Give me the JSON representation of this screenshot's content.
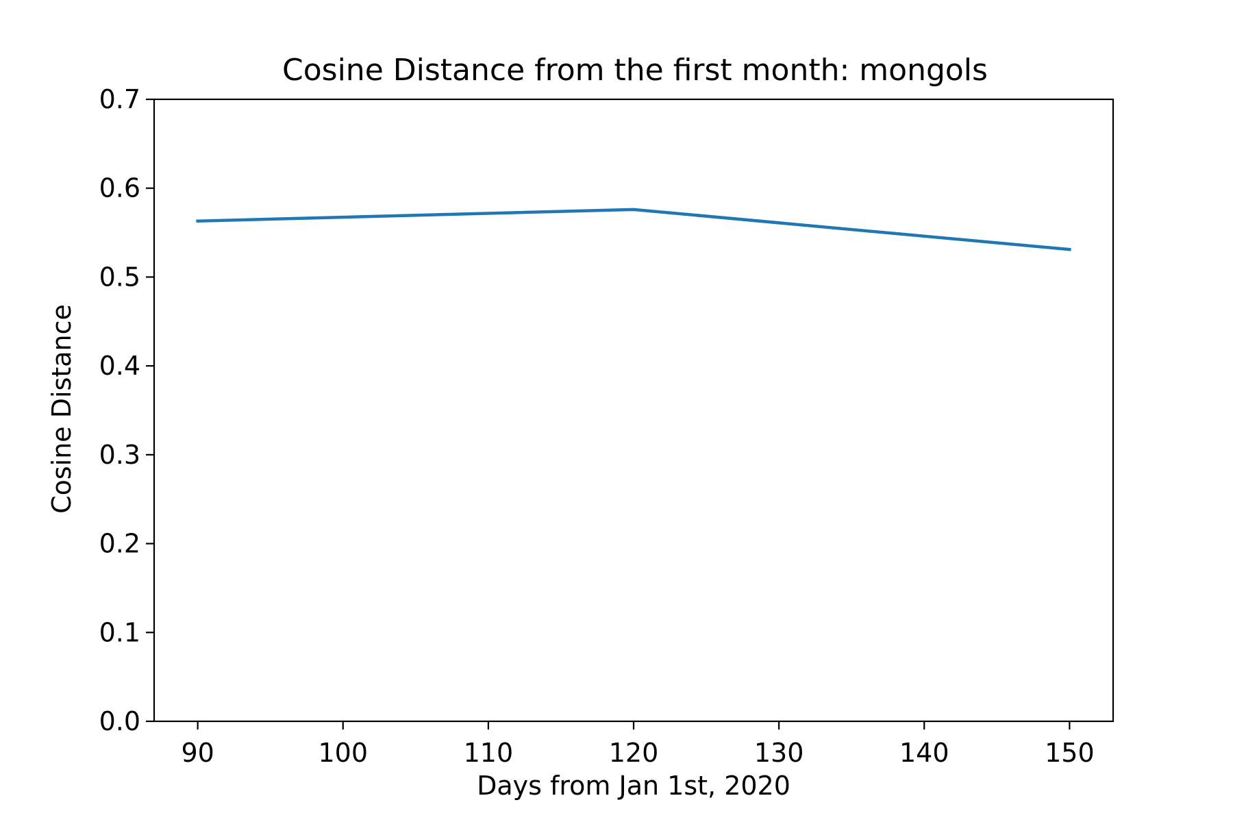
{
  "chart_data": {
    "type": "line",
    "title": "Cosine Distance from the first month: mongols",
    "xlabel": "Days from Jan 1st, 2020",
    "ylabel": "Cosine Distance",
    "xlim": [
      87,
      153
    ],
    "ylim": [
      0.0,
      0.7
    ],
    "x_ticks": [
      "90",
      "100",
      "110",
      "120",
      "130",
      "140",
      "150"
    ],
    "y_ticks": [
      "0.0",
      "0.1",
      "0.2",
      "0.3",
      "0.4",
      "0.5",
      "0.6",
      "0.7"
    ],
    "grid": false,
    "series": [
      {
        "color": "#1f77b4",
        "x": [
          90,
          120,
          150
        ],
        "y": [
          0.563,
          0.576,
          0.531
        ]
      }
    ]
  }
}
